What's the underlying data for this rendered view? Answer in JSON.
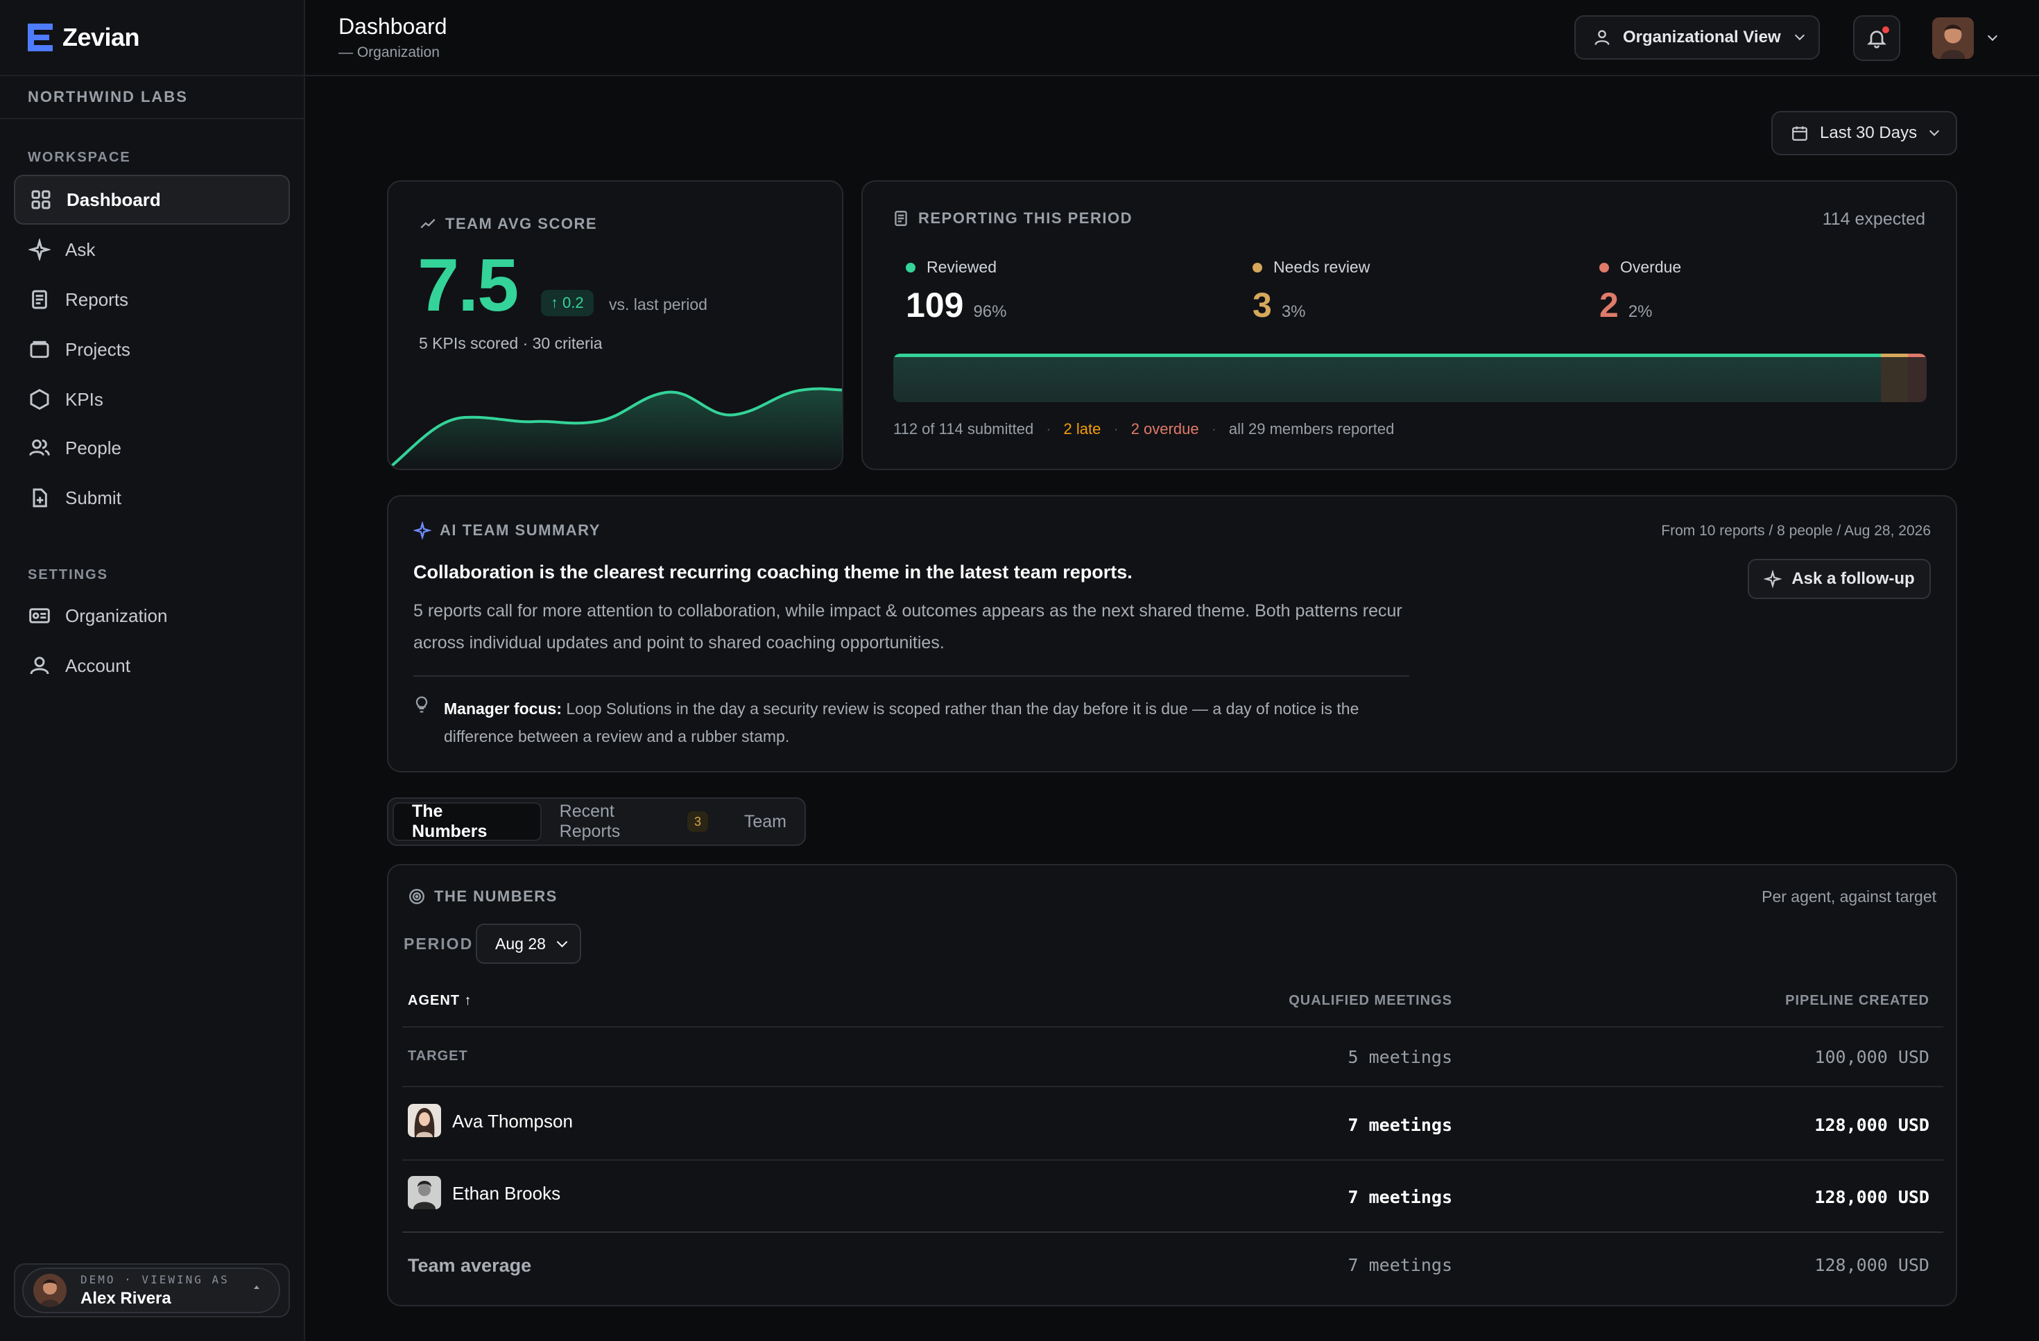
{
  "brand": {
    "name": "Zevian"
  },
  "org": {
    "name": "NORTHWIND LABS"
  },
  "sidebar": {
    "workspace_label": "WORKSPACE",
    "settings_label": "SETTINGS",
    "items": [
      {
        "label": "Dashboard",
        "icon": "grid-icon"
      },
      {
        "label": "Ask",
        "icon": "sparkle-icon"
      },
      {
        "label": "Reports",
        "icon": "document-icon"
      },
      {
        "label": "Projects",
        "icon": "folder-icon"
      },
      {
        "label": "KPIs",
        "icon": "hexagon-icon"
      },
      {
        "label": "People",
        "icon": "people-icon"
      },
      {
        "label": "Submit",
        "icon": "file-plus-icon"
      }
    ],
    "settings_items": [
      {
        "label": "Organization",
        "icon": "id-card-icon"
      },
      {
        "label": "Account",
        "icon": "user-icon"
      }
    ],
    "user": {
      "demo_label": "DEMO · VIEWING AS",
      "name": "Alex Rivera"
    }
  },
  "header": {
    "title": "Dashboard",
    "subtitle": "— Organization",
    "view_label": "Organizational View",
    "date_range": "Last 30 Days"
  },
  "score_card": {
    "label": "TEAM AVG SCORE",
    "value": "7.5",
    "delta": "0.2",
    "delta_label": "vs. last period",
    "detail": "5 KPIs scored · 30 criteria",
    "accent": "#34d399"
  },
  "reporting_card": {
    "label": "REPORTING THIS PERIOD",
    "expected": "114 expected",
    "stats": [
      {
        "label": "Needs review",
        "value": "3",
        "pct": "3%",
        "color": "#d6a85c"
      },
      {
        "label": "Overdue",
        "value": "2",
        "pct": "2%",
        "color": "#e07a6a"
      }
    ],
    "reviewed": {
      "label": "Reviewed",
      "value": "109",
      "pct": "96%",
      "color": "#34d399"
    },
    "bar": {
      "reviewed": 0.956,
      "needs_review": 0.026,
      "overdue": 0.018
    },
    "footer": {
      "submitted": "112 of 114 submitted",
      "late": "2 late",
      "overdue": "2 overdue",
      "members": "all 29 members reported"
    }
  },
  "ai_summary": {
    "label": "AI TEAM SUMMARY",
    "meta": "From 10 reports / 8 people / Aug 28, 2026",
    "headline": "Collaboration is the clearest recurring coaching theme in the latest team reports.",
    "body": "5 reports call for more attention to collaboration, while impact & outcomes appears as the next shared theme. Both patterns recur across individual updates and point to shared coaching opportunities.",
    "focus_label": "Manager focus:",
    "focus_text": "Loop Solutions in the day a security review is scoped rather than the day before it is due — a day of notice is the difference between a review and a rubber stamp.",
    "follow_up": "Ask a follow-up"
  },
  "tabs": [
    {
      "label": "The Numbers"
    },
    {
      "label": "Recent Reports",
      "badge": "3"
    },
    {
      "label": "Team"
    }
  ],
  "numbers": {
    "label": "THE NUMBERS",
    "note": "Per agent, against target",
    "period_label": "PERIOD",
    "period_value": "Aug 28",
    "columns": {
      "agent": "AGENT ↑",
      "meetings": "QUALIFIED MEETINGS",
      "pipeline": "PIPELINE CREATED"
    },
    "target": {
      "label": "TARGET",
      "meetings": "5 meetings",
      "pipeline": "100,000 USD"
    },
    "rows": [
      {
        "name": "Ava Thompson",
        "meetings": "7 meetings",
        "pipeline": "128,000 USD"
      },
      {
        "name": "Ethan Brooks",
        "meetings": "7 meetings",
        "pipeline": "128,000 USD"
      }
    ],
    "average": {
      "label": "Team average",
      "meetings": "7 meetings",
      "pipeline": "128,000 USD"
    }
  }
}
